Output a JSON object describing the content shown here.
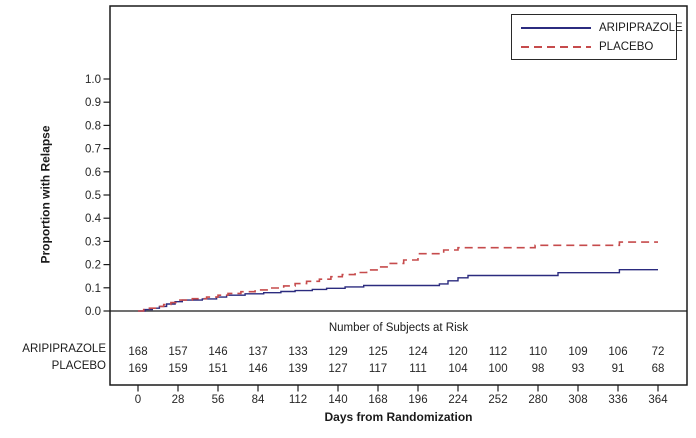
{
  "chart_data": {
    "type": "line",
    "subtype": "step",
    "title": "",
    "xlabel": "Days from Randomization",
    "ylabel": "Proportion with Relapse",
    "xlim": [
      0,
      364
    ],
    "ylim": [
      0.0,
      1.0
    ],
    "grid": false,
    "legend_position": "top-right",
    "axis_color": "#1a1a1a",
    "xticks": [
      0,
      28,
      56,
      84,
      112,
      140,
      168,
      196,
      224,
      252,
      280,
      308,
      336,
      364
    ],
    "yticks": [
      0.0,
      0.1,
      0.2,
      0.3,
      0.4,
      0.5,
      0.6,
      0.7,
      0.8,
      0.9,
      1.0
    ],
    "series": [
      {
        "name": "ARIPIPRAZOLE",
        "color": "#2b2b7f",
        "dash": "solid",
        "points": [
          [
            0,
            0
          ],
          [
            5,
            0.006
          ],
          [
            10,
            0.012
          ],
          [
            15,
            0.02
          ],
          [
            20,
            0.03
          ],
          [
            26,
            0.04
          ],
          [
            31,
            0.047
          ],
          [
            45,
            0.052
          ],
          [
            55,
            0.06
          ],
          [
            62,
            0.068
          ],
          [
            75,
            0.074
          ],
          [
            88,
            0.079
          ],
          [
            100,
            0.084
          ],
          [
            110,
            0.088
          ],
          [
            122,
            0.093
          ],
          [
            132,
            0.098
          ],
          [
            145,
            0.104
          ],
          [
            158,
            0.11
          ],
          [
            211,
            0.117
          ],
          [
            217,
            0.13
          ],
          [
            224,
            0.143
          ],
          [
            231,
            0.153
          ],
          [
            294,
            0.165
          ],
          [
            337,
            0.178
          ],
          [
            364,
            0.178
          ]
        ]
      },
      {
        "name": "PLACEBO",
        "color": "#c64b4c",
        "dash": "dashed",
        "points": [
          [
            0,
            0
          ],
          [
            4,
            0.006
          ],
          [
            8,
            0.012
          ],
          [
            13,
            0.02
          ],
          [
            18,
            0.028
          ],
          [
            23,
            0.036
          ],
          [
            28,
            0.047
          ],
          [
            38,
            0.053
          ],
          [
            48,
            0.06
          ],
          [
            56,
            0.068
          ],
          [
            63,
            0.076
          ],
          [
            72,
            0.083
          ],
          [
            82,
            0.091
          ],
          [
            92,
            0.099
          ],
          [
            102,
            0.108
          ],
          [
            110,
            0.118
          ],
          [
            118,
            0.128
          ],
          [
            127,
            0.137
          ],
          [
            135,
            0.148
          ],
          [
            143,
            0.157
          ],
          [
            152,
            0.166
          ],
          [
            160,
            0.177
          ],
          [
            168,
            0.19
          ],
          [
            176,
            0.205
          ],
          [
            186,
            0.22
          ],
          [
            196,
            0.247
          ],
          [
            214,
            0.263
          ],
          [
            224,
            0.273
          ],
          [
            278,
            0.283
          ],
          [
            337,
            0.297
          ],
          [
            364,
            0.297
          ]
        ]
      }
    ],
    "risk_table": {
      "title": "Number of Subjects at Risk",
      "rows": [
        {
          "label": "ARIPIPRAZOLE",
          "values": [
            168,
            157,
            146,
            137,
            133,
            129,
            125,
            124,
            120,
            112,
            110,
            109,
            106,
            72
          ]
        },
        {
          "label": "PLACEBO",
          "values": [
            169,
            159,
            151,
            146,
            139,
            127,
            117,
            111,
            104,
            100,
            98,
            93,
            91,
            68
          ]
        }
      ]
    }
  }
}
